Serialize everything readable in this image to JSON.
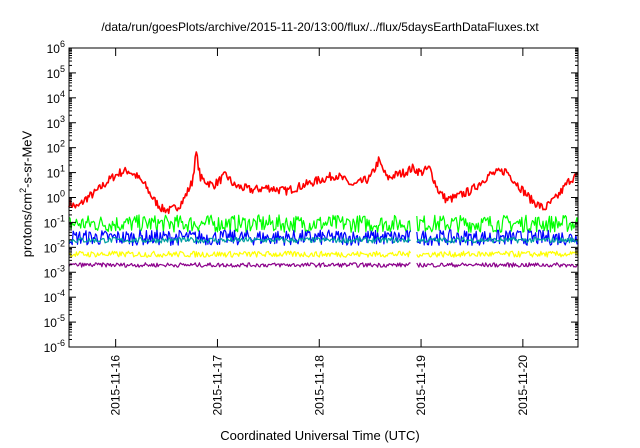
{
  "chart_data": {
    "type": "line",
    "title": "/data/run/goesPlots/archive/2015-11-20/13:00/flux/../flux/5daysEarthDataFluxes.txt",
    "xlabel": "Coordinated Universal Time (UTC)",
    "ylabel": {
      "pre": "protons/cm",
      "sup": "2",
      "post": "-s-sr-MeV"
    },
    "yscale": "log",
    "ylim": [
      1e-06,
      1000000.0
    ],
    "y_ticks": [
      {
        "exp": "-6",
        "value": 1e-06
      },
      {
        "exp": "-5",
        "value": 1e-05
      },
      {
        "exp": "-4",
        "value": 0.0001
      },
      {
        "exp": "-3",
        "value": 0.001
      },
      {
        "exp": "-2",
        "value": 0.01
      },
      {
        "exp": "-1",
        "value": 0.1
      },
      {
        "exp": "0",
        "value": 1
      },
      {
        "exp": "1",
        "value": 10
      },
      {
        "exp": "2",
        "value": 100
      },
      {
        "exp": "3",
        "value": 1000
      },
      {
        "exp": "4",
        "value": 10000
      },
      {
        "exp": "5",
        "value": 100000
      },
      {
        "exp": "6",
        "value": 1000000
      }
    ],
    "y_tick_base": "10",
    "xlim": [
      "2015-11-15 13:00",
      "2015-11-20 13:00"
    ],
    "x_ticks": [
      "2015-11-16",
      "2015-11-17",
      "2015-11-18",
      "2015-11-19",
      "2015-11-20"
    ],
    "grid": false,
    "legend": "none",
    "series": [
      {
        "color": "#ff0000",
        "values": [
          [
            "2015-11-15 13:00",
            0.6
          ],
          [
            "2015-11-15 15:00",
            0.4
          ],
          [
            "2015-11-15 17:00",
            0.9
          ],
          [
            "2015-11-15 19:00",
            1.5
          ],
          [
            "2015-11-15 21:00",
            3
          ],
          [
            "2015-11-15 23:00",
            6
          ],
          [
            "2015-11-16 01:00",
            10
          ],
          [
            "2015-11-16 03:00",
            12
          ],
          [
            "2015-11-16 05:00",
            7
          ],
          [
            "2015-11-16 07:00",
            3
          ],
          [
            "2015-11-16 09:00",
            0.8
          ],
          [
            "2015-11-16 11:00",
            0.35
          ],
          [
            "2015-11-16 13:00",
            0.3
          ],
          [
            "2015-11-16 15:00",
            0.5
          ],
          [
            "2015-11-16 16:00",
            0.8
          ],
          [
            "2015-11-16 18:00",
            4
          ],
          [
            "2015-11-16 19:00",
            60
          ],
          [
            "2015-11-16 20:00",
            6
          ],
          [
            "2015-11-16 23:00",
            3
          ],
          [
            "2015-11-17 02:00",
            8
          ],
          [
            "2015-11-17 04:00",
            3
          ],
          [
            "2015-11-17 08:00",
            2
          ],
          [
            "2015-11-17 12:00",
            2.5
          ],
          [
            "2015-11-17 16:00",
            1.8
          ],
          [
            "2015-11-17 20:00",
            3
          ],
          [
            "2015-11-18 00:00",
            5
          ],
          [
            "2015-11-18 04:00",
            8
          ],
          [
            "2015-11-18 08:00",
            3
          ],
          [
            "2015-11-18 12:00",
            6
          ],
          [
            "2015-11-18 14:00",
            30
          ],
          [
            "2015-11-18 16:00",
            6
          ],
          [
            "2015-11-18 18:00",
            8
          ],
          [
            "2015-11-18 20:00",
            10
          ],
          [
            "2015-11-18 22:00",
            15
          ],
          [
            "2015-11-19 00:00",
            10
          ],
          [
            "2015-11-19 02:00",
            15
          ],
          [
            "2015-11-19 04:00",
            2
          ],
          [
            "2015-11-19 06:00",
            0.8
          ],
          [
            "2015-11-19 08:00",
            1
          ],
          [
            "2015-11-19 12:00",
            2
          ],
          [
            "2015-11-19 16:00",
            8
          ],
          [
            "2015-11-19 20:00",
            12
          ],
          [
            "2015-11-19 23:00",
            3
          ],
          [
            "2015-11-20 02:00",
            0.8
          ],
          [
            "2015-11-20 05:00",
            0.35
          ],
          [
            "2015-11-20 08:00",
            1
          ],
          [
            "2015-11-20 11:00",
            5
          ],
          [
            "2015-11-20 13:00",
            8
          ]
        ]
      },
      {
        "color": "#00ff00",
        "band": [
          0.04,
          0.2
        ],
        "segments": [
          [
            "2015-11-15 13:00",
            "2015-11-18 21:30"
          ],
          [
            "2015-11-18 23:00",
            "2015-11-20 13:00"
          ]
        ]
      },
      {
        "color": "#0000ff",
        "band": [
          0.012,
          0.05
        ],
        "segments": [
          [
            "2015-11-15 13:00",
            "2015-11-18 21:30"
          ],
          [
            "2015-11-18 23:00",
            "2015-11-20 13:00"
          ]
        ]
      },
      {
        "color": "#00a0a0",
        "band": [
          0.015,
          0.025
        ],
        "segments": [
          [
            "2015-11-15 13:00",
            "2015-11-18 21:30"
          ],
          [
            "2015-11-18 23:00",
            "2015-11-20 13:00"
          ]
        ]
      },
      {
        "color": "#ffff00",
        "band": [
          0.004,
          0.007
        ],
        "segments": [
          [
            "2015-11-15 13:00",
            "2015-11-18 21:30"
          ],
          [
            "2015-11-18 23:00",
            "2015-11-20 13:00"
          ]
        ]
      },
      {
        "color": "#8b008b",
        "band": [
          0.0016,
          0.0024
        ],
        "segments": [
          [
            "2015-11-15 13:00",
            "2015-11-18 21:30"
          ],
          [
            "2015-11-18 23:00",
            "2015-11-20 13:00"
          ]
        ]
      }
    ]
  }
}
